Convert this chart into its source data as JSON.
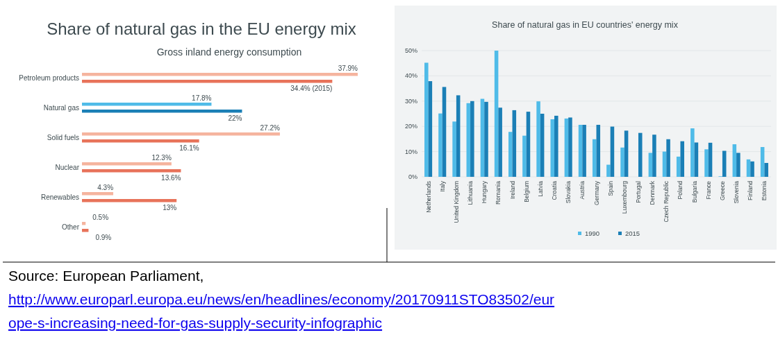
{
  "chart_data": [
    {
      "type": "bar",
      "orientation": "horizontal",
      "title": "Share of natural gas in the EU energy mix",
      "subtitle": "Gross inland energy consumption",
      "tick_labels": "y",
      "categories": [
        "Petroleum products",
        "Natural gas",
        "Solid fuels",
        "Nuclear",
        "Renewables",
        "Other"
      ],
      "series": [
        {
          "values": [
            37.9,
            17.8,
            27.2,
            12.3,
            4.3,
            0.5
          ],
          "colors": [
            "#f5b49e",
            "#4fbbe8",
            "#f5b49e",
            "#f5b49e",
            "#f5b49e",
            "#f5b49e"
          ],
          "value_labels": [
            "37.9%",
            "17.8%",
            "27.2%",
            "12.3%",
            "4.3%",
            "0.5%"
          ]
        },
        {
          "values": [
            34.4,
            22,
            16.1,
            13.6,
            13,
            0.9
          ],
          "colors": [
            "#e8735a",
            "#1b7fb6",
            "#e8735a",
            "#e8735a",
            "#e8735a",
            "#e8735a"
          ],
          "value_labels": [
            "34.4% (2015)",
            "22%",
            "16.1%",
            "13.6%",
            "13%",
            "0.9%"
          ]
        }
      ]
    },
    {
      "type": "bar",
      "title": "Share of natural gas in EU countries' energy mix",
      "categories": [
        "Netherlands",
        "Italy",
        "United Kingdom",
        "Lithuania",
        "Hungary",
        "Romania",
        "Ireland",
        "Belgium",
        "Latvia",
        "Croatia",
        "Slovakia",
        "Austria",
        "Germany",
        "Spain",
        "Luxembourg",
        "Portugal",
        "Denmark",
        "Czech Republic",
        "Poland",
        "Bulgaria",
        "France",
        "Greece",
        "Slovenia",
        "Finland",
        "Estonia"
      ],
      "series": [
        {
          "name": "1990",
          "color": "#4fbbe8",
          "values": [
            45.2,
            25.1,
            21.9,
            29.2,
            30.9,
            50,
            17.8,
            16.3,
            29.9,
            22.8,
            23.1,
            20.6,
            14.9,
            4.8,
            11.6,
            0,
            9.5,
            10,
            8,
            19.2,
            10.9,
            0.2,
            12.9,
            6.9,
            11.8
          ]
        },
        {
          "name": "2015",
          "color": "#1b7fb6",
          "values": [
            37.9,
            35.6,
            32.3,
            30,
            29.7,
            27.4,
            26.4,
            25.8,
            25,
            24.2,
            23.5,
            20.6,
            20.6,
            19.9,
            18.3,
            17.4,
            16.7,
            14.9,
            14.1,
            13.6,
            13.5,
            10.3,
            9.5,
            6.1,
            5.5
          ]
        }
      ],
      "ylim": [
        0,
        50
      ],
      "yticks": [
        {
          "value": 0,
          "label": "0%"
        },
        {
          "value": 10,
          "label": "10%"
        },
        {
          "value": 20,
          "label": "20%"
        },
        {
          "value": 30,
          "label": "30%"
        },
        {
          "value": 40,
          "label": "40%"
        },
        {
          "value": 50,
          "label": "50%"
        }
      ],
      "grid": "y",
      "legend": "bottom",
      "annotations": [
        "Source: European Parliament, http://www.europarl.europa.eu/news/en/headlines/economy/20170911STO83502/europe-s-increasing-need-for-gas-supply-security-infographic"
      ]
    }
  ]
}
